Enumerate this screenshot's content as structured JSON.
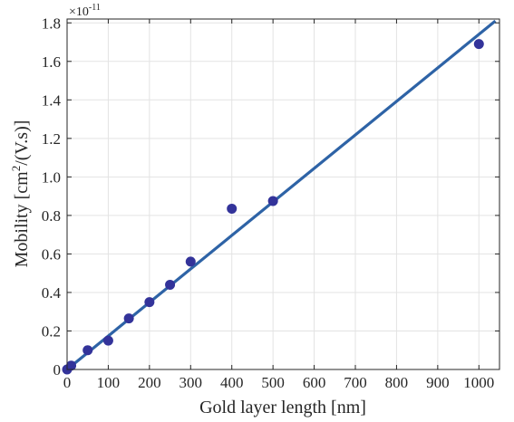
{
  "chart_data": {
    "type": "scatter",
    "xlabel": "Gold layer length [nm]",
    "ylabel_main": "Mobility [cm",
    "ylabel_sup": "2",
    "ylabel_tail": "/(V.s)]",
    "y_exponent_base": "×10",
    "y_exponent_power": "-11",
    "xlim": [
      0,
      1050
    ],
    "ylim": [
      0,
      1.82
    ],
    "x_ticks": [
      0,
      100,
      200,
      300,
      400,
      500,
      600,
      700,
      800,
      900,
      1000
    ],
    "y_ticks": [
      0,
      0.2,
      0.4,
      0.6,
      0.8,
      1.0,
      1.2,
      1.4,
      1.6,
      1.8
    ],
    "y_tick_labels": [
      "0",
      "0.2",
      "0.4",
      "0.6",
      "0.8",
      "1.0",
      "1.2",
      "1.4",
      "1.6",
      "1.8"
    ],
    "grid": true,
    "series": [
      {
        "kind": "points",
        "color": "#33339a",
        "points": [
          {
            "x": 0,
            "y": 0.0
          },
          {
            "x": 10,
            "y": 0.02
          },
          {
            "x": 50,
            "y": 0.1
          },
          {
            "x": 100,
            "y": 0.15
          },
          {
            "x": 150,
            "y": 0.265
          },
          {
            "x": 200,
            "y": 0.35
          },
          {
            "x": 250,
            "y": 0.44
          },
          {
            "x": 300,
            "y": 0.56
          },
          {
            "x": 400,
            "y": 0.835
          },
          {
            "x": 500,
            "y": 0.875
          },
          {
            "x": 1000,
            "y": 1.69
          }
        ]
      },
      {
        "kind": "fit-line",
        "color": "#2e63a6",
        "points": [
          {
            "x": 0,
            "y": 0.0
          },
          {
            "x": 1040,
            "y": 1.81
          }
        ]
      }
    ]
  }
}
